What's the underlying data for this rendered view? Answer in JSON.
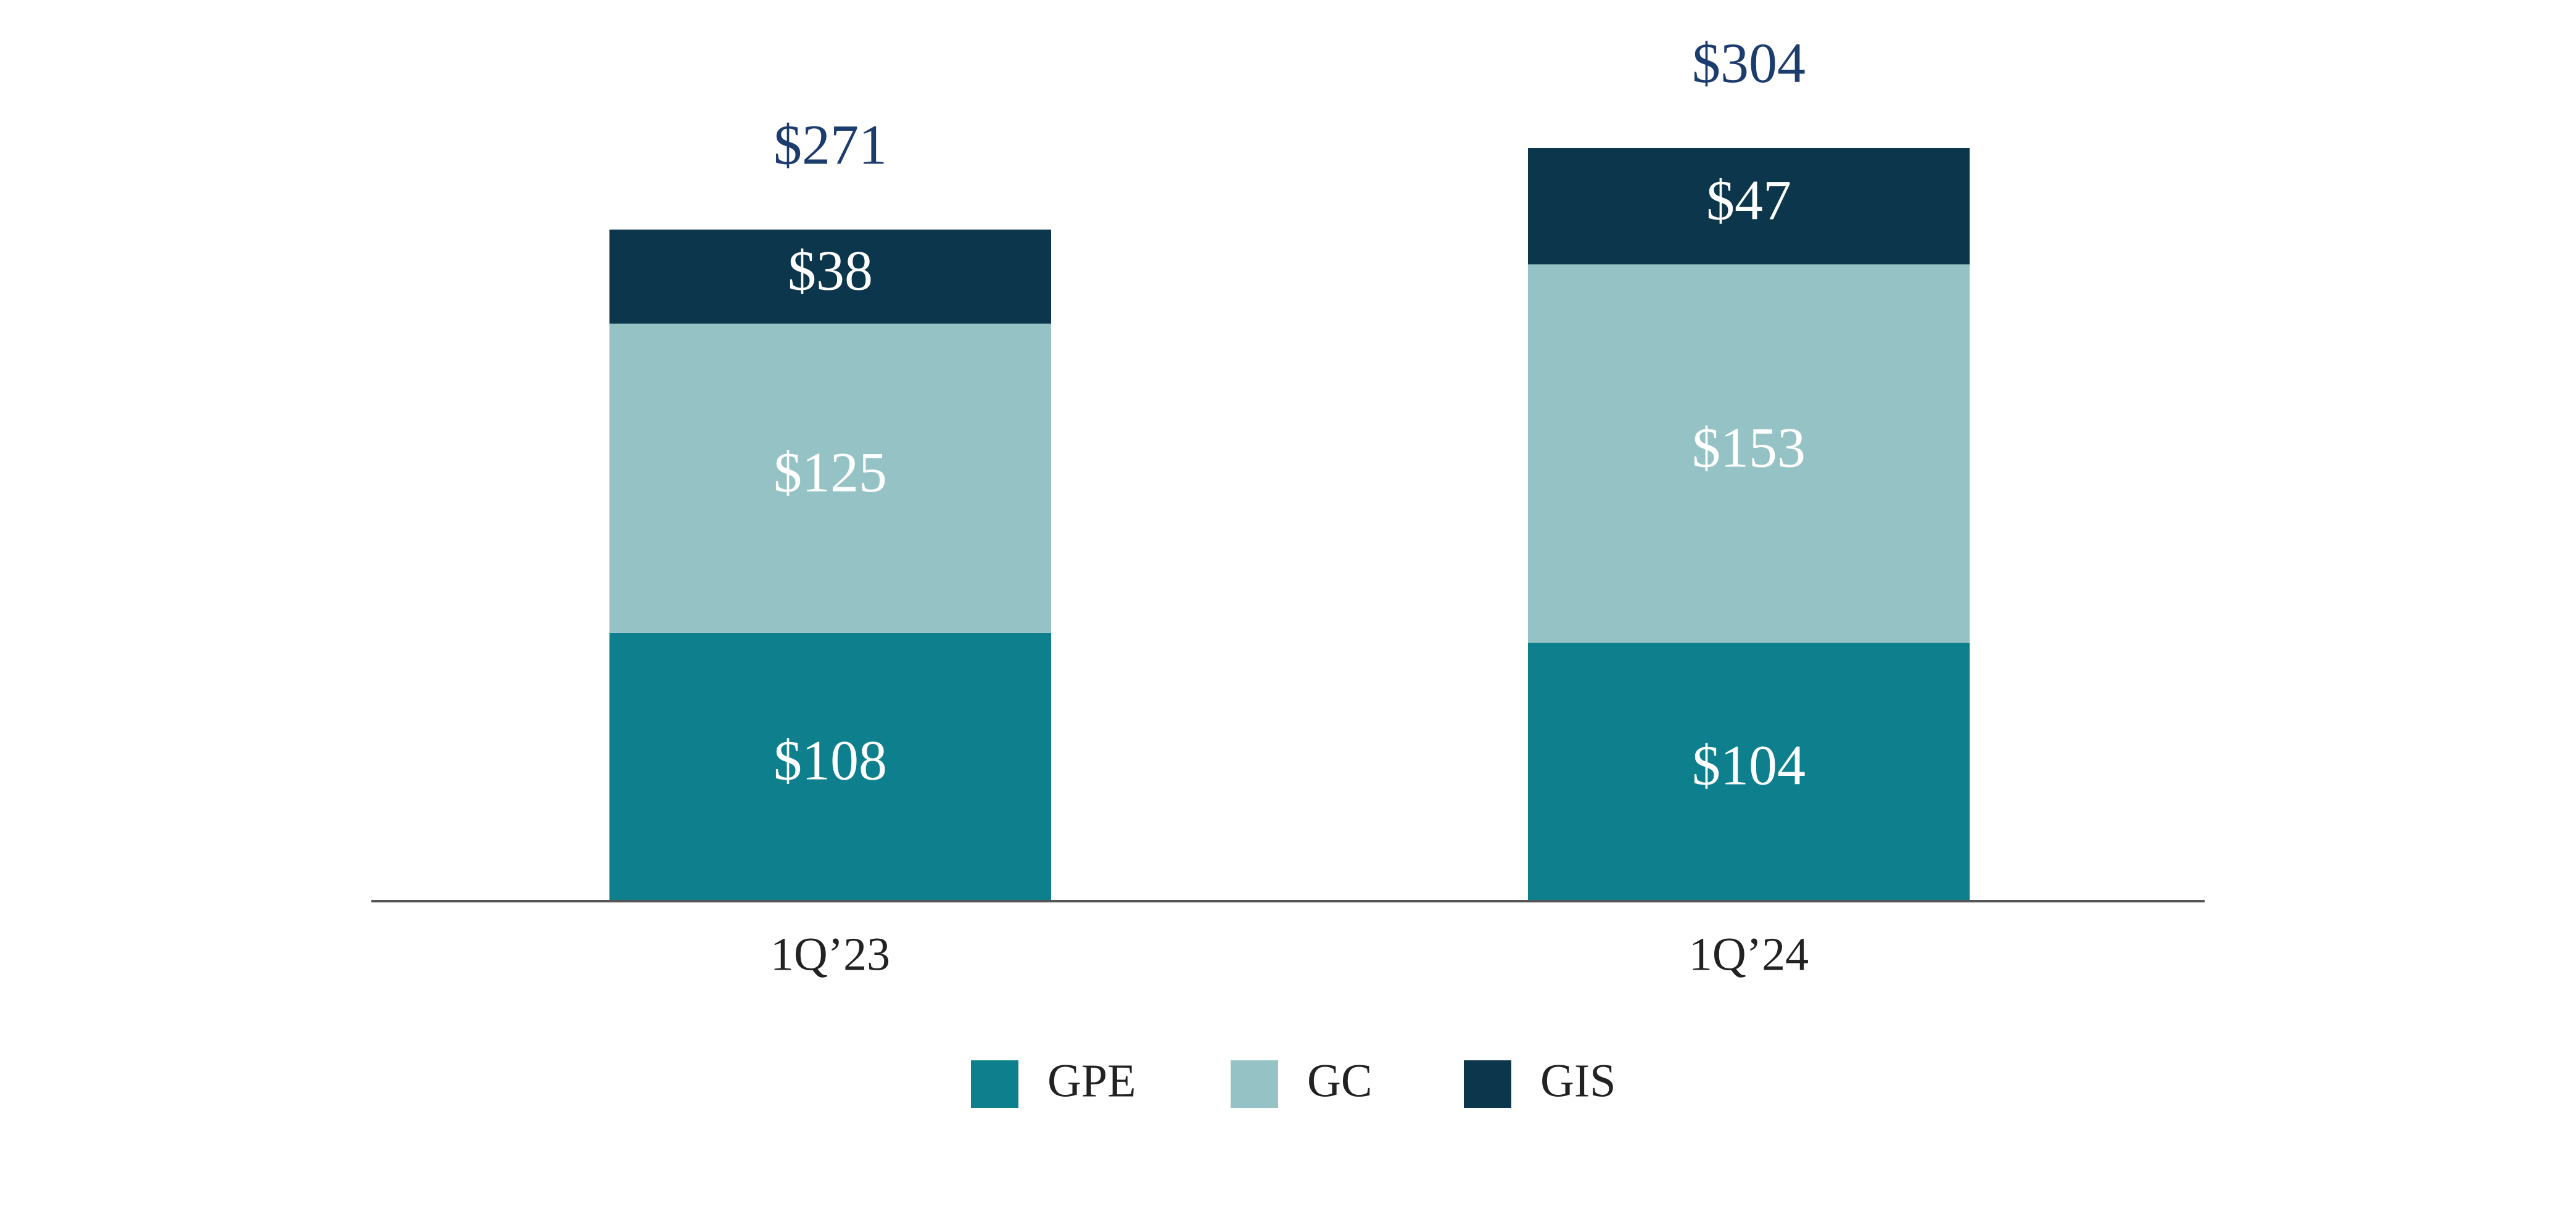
{
  "chart_data": {
    "type": "stacked_bar",
    "categories": [
      "1Q’23",
      "1Q’24"
    ],
    "series": [
      {
        "name": "GPE",
        "color": "#0e7f8c",
        "values": [
          108,
          104
        ],
        "value_labels": [
          "$108",
          "$104"
        ]
      },
      {
        "name": "GC",
        "color": "#95c3c5",
        "values": [
          125,
          153
        ],
        "value_labels": [
          "$125",
          "$153"
        ]
      },
      {
        "name": "GIS",
        "color": "#0b364b",
        "values": [
          38,
          47
        ],
        "value_labels": [
          "$38",
          "$47"
        ]
      }
    ],
    "totals": [
      271,
      304
    ],
    "total_labels": [
      "$271",
      "$304"
    ],
    "total_color": "#1d3c6e",
    "legend": "bottom"
  }
}
